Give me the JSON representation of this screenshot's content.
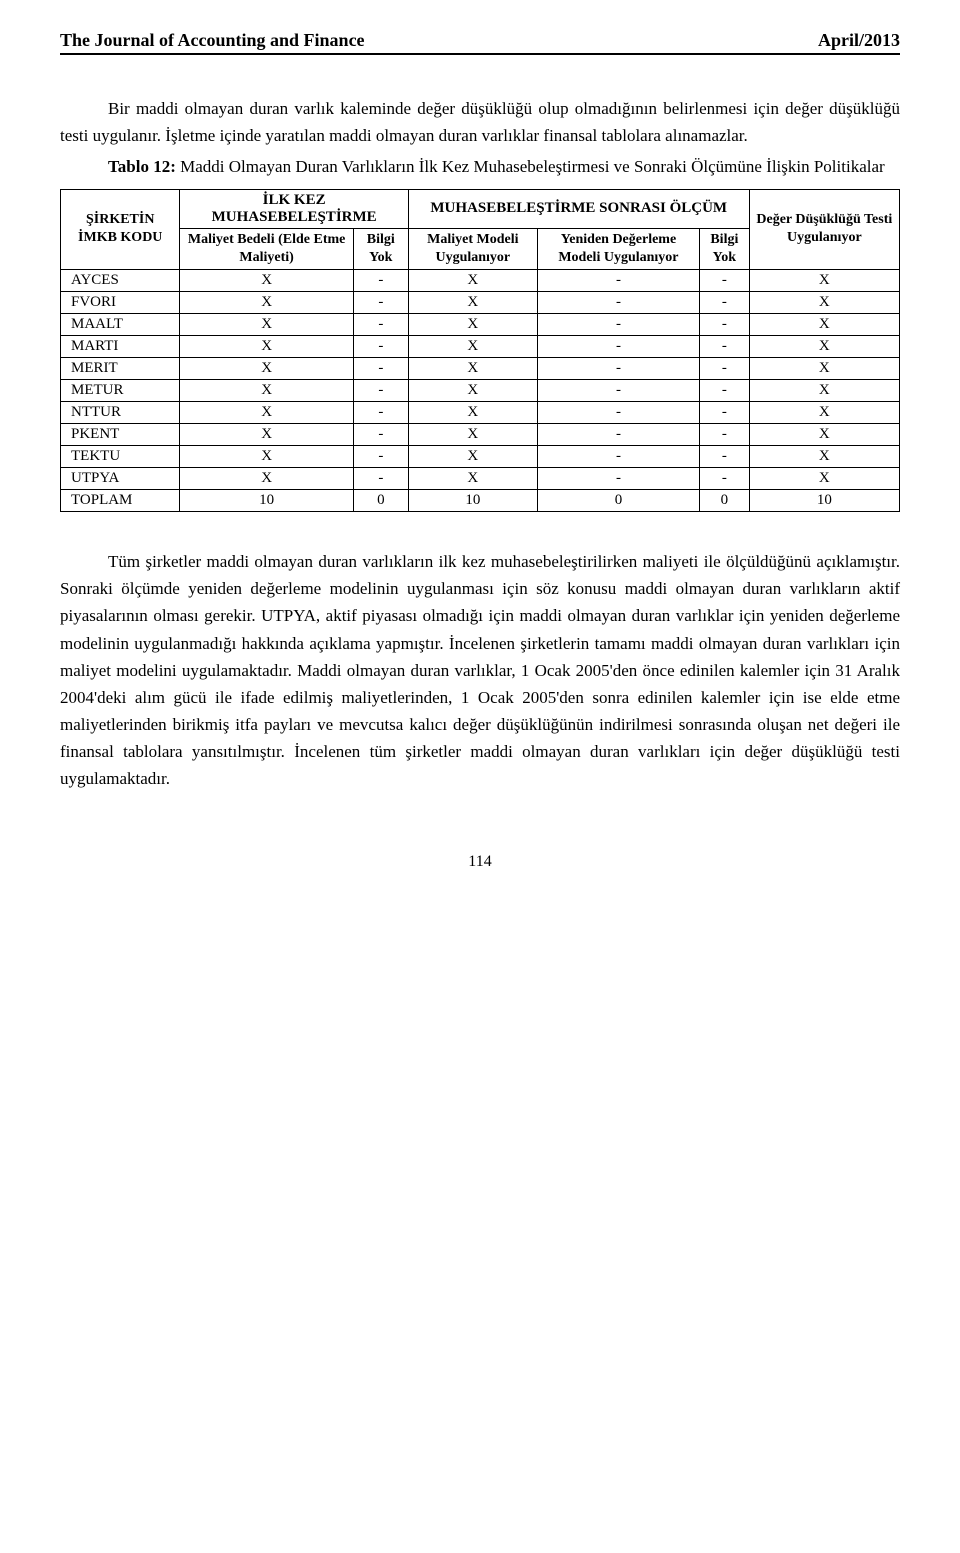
{
  "header": {
    "journal": "The Journal of Accounting and Finance",
    "issue": "April/2013"
  },
  "para1": "Bir maddi olmayan duran varlık kaleminde değer düşüklüğü olup olmadığının belirlenmesi için değer düşüklüğü testi uygulanır. İşletme içinde yaratılan maddi olmayan duran varlıklar finansal tablolara alınamazlar.",
  "table_caption_prefix": "Tablo 12:",
  "table_caption_rest": " Maddi Olmayan Duran Varlıkların İlk Kez Muhasebeleştirmesi ve Sonraki Ölçümüne İlişkin Politikalar",
  "table": {
    "head": {
      "col0": "ŞİRKETİN İMKB KODU",
      "col_group1": "İLK KEZ MUHASEBELEŞTİRME",
      "col_group2": "MUHASEBELEŞTİRME SONRASI ÖLÇÜM",
      "col_last": "Değer Düşüklüğü Testi Uygulanıyor",
      "sub1": "Maliyet Bedeli (Elde Etme Maliyeti)",
      "sub2": "Bilgi Yok",
      "sub3": "Maliyet Modeli Uygulanıyor",
      "sub4": "Yeniden Değerleme Modeli Uygulanıyor",
      "sub5": "Bilgi Yok"
    },
    "rows": [
      {
        "k": "AYCES",
        "c": [
          "X",
          "-",
          "X",
          "-",
          "-",
          "X"
        ]
      },
      {
        "k": "FVORI",
        "c": [
          "X",
          "-",
          "X",
          "-",
          "-",
          "X"
        ]
      },
      {
        "k": "MAALT",
        "c": [
          "X",
          "-",
          "X",
          "-",
          "-",
          "X"
        ]
      },
      {
        "k": "MARTI",
        "c": [
          "X",
          "-",
          "X",
          "-",
          "-",
          "X"
        ]
      },
      {
        "k": "MERIT",
        "c": [
          "X",
          "-",
          "X",
          "-",
          "-",
          "X"
        ]
      },
      {
        "k": "METUR",
        "c": [
          "X",
          "-",
          "X",
          "-",
          "-",
          "X"
        ]
      },
      {
        "k": "NTTUR",
        "c": [
          "X",
          "-",
          "X",
          "-",
          "-",
          "X"
        ]
      },
      {
        "k": "PKENT",
        "c": [
          "X",
          "-",
          "X",
          "-",
          "-",
          "X"
        ]
      },
      {
        "k": "TEKTU",
        "c": [
          "X",
          "-",
          "X",
          "-",
          "-",
          "X"
        ]
      },
      {
        "k": "UTPYA",
        "c": [
          "X",
          "-",
          "X",
          "-",
          "-",
          "X"
        ]
      },
      {
        "k": "TOPLAM",
        "c": [
          "10",
          "0",
          "10",
          "0",
          "0",
          "10"
        ]
      }
    ]
  },
  "para2": "Tüm şirketler maddi olmayan duran varlıkların ilk kez muhasebeleştirilirken maliyeti ile ölçüldüğünü açıklamıştır. Sonraki ölçümde yeniden değerleme modelinin uygulanması için söz konusu maddi olmayan duran varlıkların aktif piyasalarının olması gerekir. UTPYA, aktif piyasası olmadığı için maddi olmayan duran varlıklar için yeniden değerleme modelinin uygulanmadığı hakkında açıklama yapmıştır. İncelenen şirketlerin tamamı maddi olmayan duran varlıkları için maliyet modelini uygulamaktadır. Maddi olmayan duran varlıklar, 1 Ocak 2005'den önce edinilen kalemler için 31 Aralık 2004'deki alım gücü ile ifade edilmiş maliyetlerinden, 1 Ocak 2005'den sonra edinilen kalemler için ise elde etme maliyetlerinden birikmiş itfa payları ve mevcutsa kalıcı değer düşüklüğünün indirilmesi sonrasında oluşan net değeri ile finansal tablolara yansıtılmıştır. İncelenen tüm şirketler maddi olmayan duran varlıkları için değer düşüklüğü testi uygulamaktadır.",
  "page_number": "114"
}
